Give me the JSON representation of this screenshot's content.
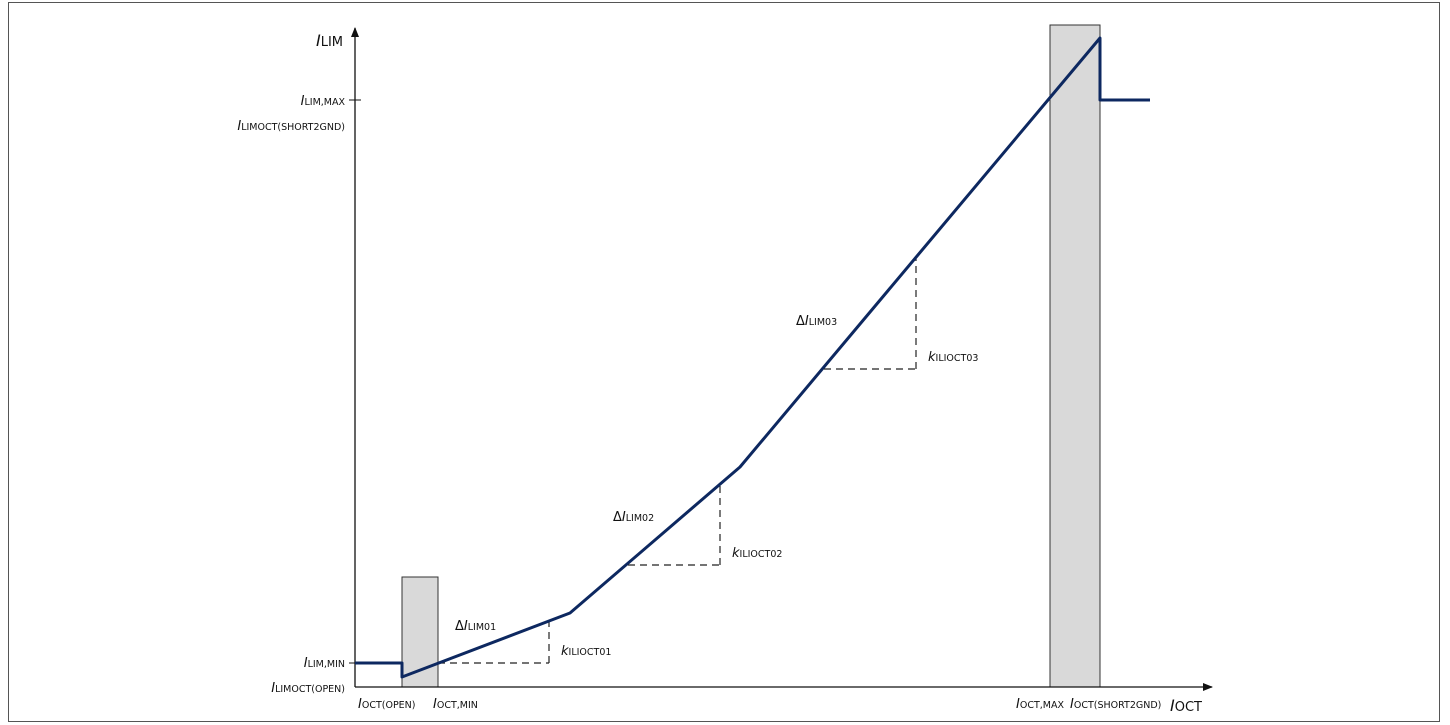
{
  "axes": {
    "y": {
      "main": "I",
      "sub": "LIM"
    },
    "x": {
      "main": "I",
      "sub": "OCT"
    }
  },
  "y_ticks": {
    "lim_max": {
      "main": "I",
      "sub": "LIM,MAX"
    },
    "limoct_short2gnd": {
      "main": "I",
      "sub": "LIMOCT(SHORT2GND)"
    },
    "lim_min": {
      "main": "I",
      "sub": "LIM,MIN"
    },
    "limoct_open": {
      "main": "I",
      "sub": "LIMOCT(OPEN)"
    }
  },
  "x_ticks": {
    "oct_open": {
      "main": "I",
      "sub": "OCT(OPEN)"
    },
    "oct_min": {
      "main": "I",
      "sub": "OCT,MIN"
    },
    "oct_max": {
      "main": "I",
      "sub": "OCT,MAX"
    },
    "oct_short2gnd": {
      "main": "I",
      "sub": "OCT(SHORT2GND)"
    }
  },
  "annotations": {
    "delta1": {
      "prefix": "Δ",
      "main": "I",
      "sub": "LIM01"
    },
    "delta2": {
      "prefix": "Δ",
      "main": "I",
      "sub": "LIM02"
    },
    "delta3": {
      "prefix": "Δ",
      "main": "I",
      "sub": "LIM03"
    },
    "k1": {
      "main": "k",
      "sub": "ILIOCT01"
    },
    "k2": {
      "main": "k",
      "sub": "ILIOCT02"
    },
    "k3": {
      "main": "k",
      "sub": "ILIOCT03"
    }
  },
  "colors": {
    "curve": "#0d2860",
    "band_fill": "#d9d9d9",
    "axis": "#111111"
  }
}
